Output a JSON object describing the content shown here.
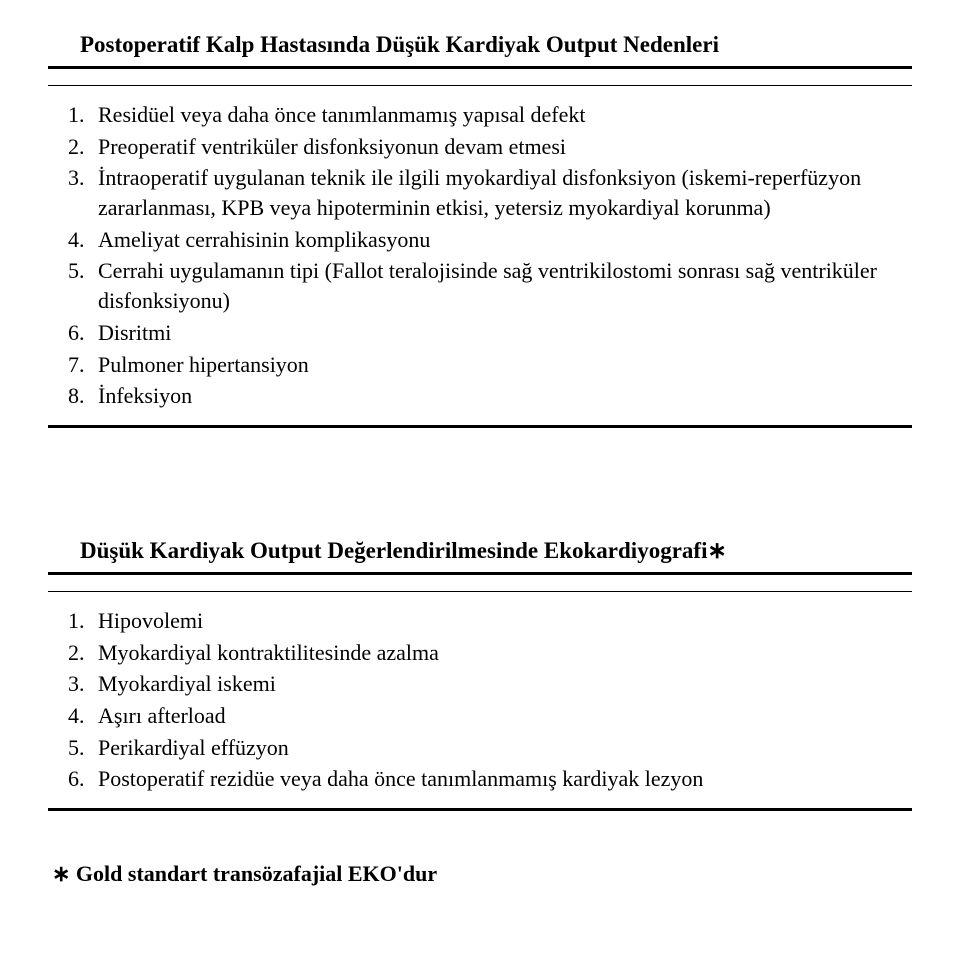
{
  "section1": {
    "title": "Postoperatif Kalp Hastasında Düşük Kardiyak Output Nedenleri",
    "items": [
      "Residüel veya daha önce tanımlanmamış yapısal defekt",
      "Preoperatif ventriküler disfonksiyonun devam etmesi",
      "İntraoperatif uygulanan teknik ile ilgili myokardiyal disfonksiyon (iskemi-reperfüzyon zararlanması, KPB veya hipoterminin etkisi, yetersiz myokardiyal korunma)",
      "Ameliyat cerrahisinin komplikasyonu",
      "Cerrahi uygulamanın tipi (Fallot teralojisinde sağ ventrikilostomi sonrası sağ ventriküler disfonksiyonu)",
      "Disritmi",
      "Pulmoner hipertansiyon",
      "İnfeksiyon"
    ]
  },
  "section2": {
    "title": "Düşük Kardiyak Output Değerlendirilmesinde Ekokardiyografi∗",
    "items": [
      "Hipovolemi",
      "Myokardiyal kontraktilitesinde azalma",
      "Myokardiyal iskemi",
      "Aşırı afterload",
      "Perikardiyal effüzyon",
      "Postoperatif rezidüe veya daha önce tanımlanmamış kardiyak lezyon"
    ],
    "footnote": "∗ Gold standart transözafajial EKO'dur"
  }
}
